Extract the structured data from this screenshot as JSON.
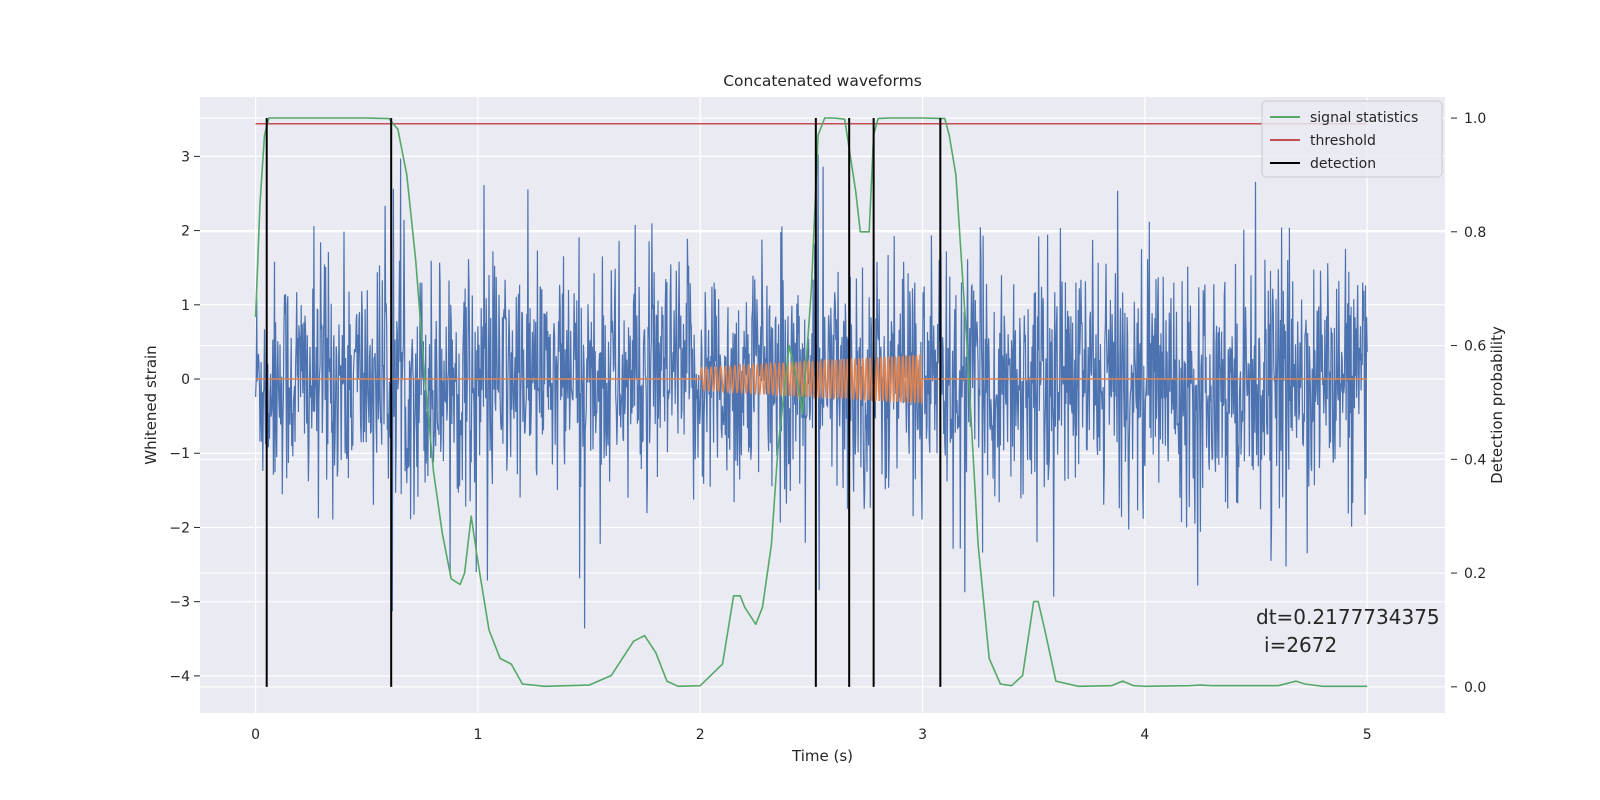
{
  "chart_data": {
    "type": "line",
    "title": "Concatenated waveforms",
    "xlabel": "Time (s)",
    "ylabel": "Whitened strain",
    "y2label": "Detection probability",
    "xlim": [
      -0.25,
      5.35
    ],
    "ylim": [
      -4.5,
      3.8
    ],
    "y2lim": [
      -0.046,
      1.037
    ],
    "x_ticks": [
      "0",
      "1",
      "2",
      "3",
      "4",
      "5"
    ],
    "y_ticks": [
      "3",
      "2",
      "1",
      "0",
      "−1",
      "−2",
      "−3",
      "−4"
    ],
    "y2_ticks": [
      "1.0",
      "0.8",
      "0.6",
      "0.4",
      "0.2",
      "0.0"
    ],
    "grid": true,
    "legend_position": "top-right",
    "series": [
      {
        "name": "",
        "axis": "left",
        "color": "#4c72b0",
        "kind": "noise",
        "x_range": [
          0,
          5
        ],
        "sample_interval": 0.0025,
        "y_range": [
          -4.15,
          3.55
        ]
      },
      {
        "name": "",
        "axis": "left",
        "color": "#dd8452",
        "kind": "chirp",
        "x_range": [
          0,
          5
        ],
        "chirp_x_range": [
          2,
          3
        ],
        "chirp_amplitude_range": [
          0.15,
          0.33
        ]
      },
      {
        "name": "signal statistics",
        "axis": "right",
        "color": "#55a868",
        "x": [
          0.0,
          0.02,
          0.04,
          0.06,
          0.1,
          0.3,
          0.5,
          0.6,
          0.64,
          0.68,
          0.72,
          0.76,
          0.8,
          0.84,
          0.88,
          0.92,
          0.94,
          0.97,
          1.0,
          1.05,
          1.1,
          1.15,
          1.2,
          1.3,
          1.5,
          1.6,
          1.65,
          1.7,
          1.75,
          1.8,
          1.85,
          1.9,
          2.0,
          2.1,
          2.15,
          2.18,
          2.2,
          2.25,
          2.28,
          2.32,
          2.35,
          2.4,
          2.44,
          2.46,
          2.5,
          2.53,
          2.56,
          2.6,
          2.65,
          2.7,
          2.72,
          2.74,
          2.76,
          2.78,
          2.8,
          2.85,
          3.0,
          3.1,
          3.12,
          3.15,
          3.2,
          3.25,
          3.3,
          3.35,
          3.4,
          3.45,
          3.5,
          3.52,
          3.55,
          3.6,
          3.7,
          3.85,
          3.9,
          3.95,
          4.0,
          4.2,
          4.25,
          4.3,
          4.6,
          4.68,
          4.72,
          4.8,
          5.0
        ],
        "values": [
          0.65,
          0.85,
          0.97,
          1.0,
          1.0,
          1.0,
          1.0,
          0.999,
          0.98,
          0.9,
          0.75,
          0.55,
          0.38,
          0.27,
          0.19,
          0.18,
          0.2,
          0.3,
          0.22,
          0.1,
          0.05,
          0.04,
          0.005,
          0.001,
          0.003,
          0.02,
          0.05,
          0.08,
          0.09,
          0.06,
          0.01,
          0.001,
          0.002,
          0.04,
          0.16,
          0.16,
          0.14,
          0.11,
          0.14,
          0.25,
          0.42,
          0.6,
          0.53,
          0.48,
          0.7,
          0.97,
          1.0,
          1.0,
          0.998,
          0.87,
          0.8,
          0.8,
          0.8,
          0.97,
          0.999,
          1.0,
          1.0,
          0.999,
          0.97,
          0.9,
          0.6,
          0.25,
          0.05,
          0.005,
          0.002,
          0.02,
          0.15,
          0.15,
          0.1,
          0.01,
          0.001,
          0.002,
          0.01,
          0.002,
          0.001,
          0.002,
          0.003,
          0.002,
          0.002,
          0.01,
          0.005,
          0.001,
          0.001
        ]
      },
      {
        "name": "threshold",
        "axis": "right",
        "color": "#c44e52",
        "x": [
          0,
          5
        ],
        "values": [
          0.99,
          0.99
        ]
      },
      {
        "name": "detection",
        "axis": "right",
        "color": "#000000",
        "kind": "vertical_lines",
        "x": [
          0.05,
          0.61,
          2.52,
          2.67,
          2.78,
          3.08
        ],
        "range": [
          0.0,
          1.0
        ]
      }
    ],
    "annotation": {
      "line1": "dt=0.2177734375",
      "line2": "i=2672",
      "x": 4.5,
      "y": -3.3
    }
  }
}
